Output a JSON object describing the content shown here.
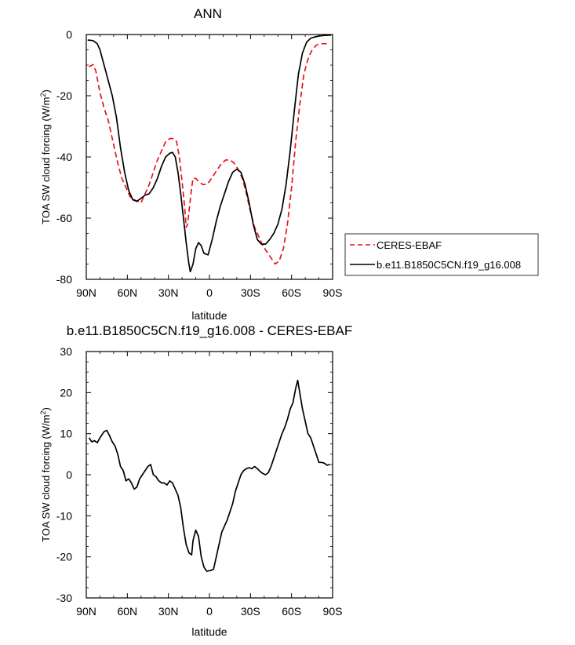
{
  "chart_data": [
    {
      "type": "line",
      "title": "ANN",
      "xlabel": "latitude",
      "ylabel": "TOA SW cloud forcing (W/m²)",
      "ylabel_main": "TOA SW cloud forcing (W/m",
      "ylabel_sup": "2",
      "ylabel_close": ")",
      "xlim": [
        90,
        -90
      ],
      "ylim": [
        -80,
        0
      ],
      "x_ticks": [
        90,
        60,
        30,
        0,
        -30,
        -60,
        -90
      ],
      "x_tick_labels": [
        "90N",
        "60N",
        "30N",
        "0",
        "30S",
        "60S",
        "90S"
      ],
      "y_ticks": [
        0,
        -20,
        -40,
        -60,
        -80
      ],
      "y_tick_labels": [
        "0",
        "-20",
        "-40",
        "-60",
        "-80"
      ],
      "legend": "right, outside",
      "series": [
        {
          "name": "CERES-EBAF",
          "color": "#e8151b",
          "dashed": true,
          "points": [
            [
              88,
              -10.5
            ],
            [
              85,
              -9.8
            ],
            [
              83,
              -12
            ],
            [
              80,
              -19
            ],
            [
              77,
              -24
            ],
            [
              74,
              -28
            ],
            [
              70,
              -36
            ],
            [
              67,
              -42
            ],
            [
              64,
              -47
            ],
            [
              61,
              -50
            ],
            [
              58,
              -53
            ],
            [
              55,
              -54
            ],
            [
              50,
              -55
            ],
            [
              47,
              -52
            ],
            [
              44,
              -49
            ],
            [
              41,
              -45
            ],
            [
              38,
              -41
            ],
            [
              35,
              -38
            ],
            [
              32,
              -35
            ],
            [
              29,
              -34
            ],
            [
              26,
              -34
            ],
            [
              24,
              -35
            ],
            [
              22,
              -40
            ],
            [
              20,
              -48
            ],
            [
              18,
              -57
            ],
            [
              17,
              -63
            ],
            [
              16,
              -62
            ],
            [
              15,
              -58
            ],
            [
              13,
              -50
            ],
            [
              12,
              -47
            ],
            [
              10,
              -47
            ],
            [
              8,
              -48
            ],
            [
              5,
              -49
            ],
            [
              2,
              -49
            ],
            [
              0,
              -48
            ],
            [
              -3,
              -46
            ],
            [
              -6,
              -44
            ],
            [
              -9,
              -42
            ],
            [
              -12,
              -41
            ],
            [
              -15,
              -41
            ],
            [
              -18,
              -42
            ],
            [
              -21,
              -44
            ],
            [
              -24,
              -47
            ],
            [
              -27,
              -52
            ],
            [
              -30,
              -58
            ],
            [
              -33,
              -63
            ],
            [
              -36,
              -66
            ],
            [
              -39,
              -69
            ],
            [
              -42,
              -71
            ],
            [
              -45,
              -73
            ],
            [
              -48,
              -75
            ],
            [
              -51,
              -74
            ],
            [
              -54,
              -70
            ],
            [
              -57,
              -62
            ],
            [
              -60,
              -50
            ],
            [
              -63,
              -35
            ],
            [
              -66,
              -23
            ],
            [
              -69,
              -13
            ],
            [
              -72,
              -8
            ],
            [
              -75,
              -5
            ],
            [
              -78,
              -3.5
            ],
            [
              -81,
              -3
            ],
            [
              -85,
              -3
            ],
            [
              -88,
              -3
            ]
          ]
        },
        {
          "name": "b.e11.B1850C5CN.f19_g16.008",
          "color": "#000000",
          "dashed": false,
          "points": [
            [
              89,
              -1.8
            ],
            [
              85,
              -2
            ],
            [
              82,
              -3
            ],
            [
              80,
              -5
            ],
            [
              77,
              -10
            ],
            [
              74,
              -15
            ],
            [
              71,
              -20
            ],
            [
              68,
              -27
            ],
            [
              65,
              -37
            ],
            [
              62,
              -45
            ],
            [
              59,
              -51
            ],
            [
              56,
              -54
            ],
            [
              53,
              -54.5
            ],
            [
              50,
              -53.5
            ],
            [
              47,
              -52.5
            ],
            [
              44,
              -52
            ],
            [
              41,
              -50
            ],
            [
              38,
              -47
            ],
            [
              35,
              -43
            ],
            [
              32,
              -40
            ],
            [
              29,
              -38.8
            ],
            [
              27,
              -38.5
            ],
            [
              25,
              -40
            ],
            [
              23,
              -45
            ],
            [
              21,
              -52
            ],
            [
              19,
              -60
            ],
            [
              17,
              -68
            ],
            [
              15,
              -75
            ],
            [
              14,
              -77.5
            ],
            [
              12,
              -75
            ],
            [
              10,
              -70
            ],
            [
              8,
              -68
            ],
            [
              6,
              -69
            ],
            [
              4,
              -71.5
            ],
            [
              1,
              -72
            ],
            [
              -2,
              -67
            ],
            [
              -5,
              -61
            ],
            [
              -8,
              -56
            ],
            [
              -11,
              -52
            ],
            [
              -14,
              -48
            ],
            [
              -17,
              -45
            ],
            [
              -20,
              -44
            ],
            [
              -23,
              -45
            ],
            [
              -26,
              -49
            ],
            [
              -29,
              -55
            ],
            [
              -32,
              -62
            ],
            [
              -35,
              -67
            ],
            [
              -38,
              -68.5
            ],
            [
              -41,
              -68.5
            ],
            [
              -44,
              -67
            ],
            [
              -47,
              -65
            ],
            [
              -50,
              -62
            ],
            [
              -53,
              -57
            ],
            [
              -56,
              -49
            ],
            [
              -59,
              -38
            ],
            [
              -62,
              -25
            ],
            [
              -65,
              -13
            ],
            [
              -68,
              -6
            ],
            [
              -71,
              -2.5
            ],
            [
              -74,
              -1.2
            ],
            [
              -77,
              -0.8
            ],
            [
              -80,
              -0.5
            ],
            [
              -84,
              -0.3
            ],
            [
              -89,
              -0.2
            ]
          ]
        }
      ]
    },
    {
      "type": "line",
      "title": "b.e11.B1850C5CN.f19_g16.008 - CERES-EBAF",
      "xlabel": "latitude",
      "ylabel": "TOA SW cloud forcing (W/m²)",
      "ylabel_main": "TOA SW cloud forcing (W/m",
      "ylabel_sup": "2",
      "ylabel_close": ")",
      "xlim": [
        90,
        -90
      ],
      "ylim": [
        -30,
        30
      ],
      "x_ticks": [
        90,
        60,
        30,
        0,
        -30,
        -60,
        -90
      ],
      "x_tick_labels": [
        "90N",
        "60N",
        "30N",
        "0",
        "30S",
        "60S",
        "90S"
      ],
      "y_ticks": [
        30,
        20,
        10,
        0,
        -10,
        -20,
        -30
      ],
      "y_tick_labels": [
        "30",
        "20",
        "10",
        "0",
        "-10",
        "-20",
        "-30"
      ],
      "series": [
        {
          "color": "#000000",
          "dashed": false,
          "points": [
            [
              88,
              9
            ],
            [
              86,
              8
            ],
            [
              84,
              8.3
            ],
            [
              82,
              7.8
            ],
            [
              80,
              9
            ],
            [
              77,
              10.5
            ],
            [
              75,
              10.8
            ],
            [
              73,
              9.5
            ],
            [
              71,
              8
            ],
            [
              69,
              7
            ],
            [
              67,
              5
            ],
            [
              65,
              2
            ],
            [
              63,
              1
            ],
            [
              61,
              -1.5
            ],
            [
              59,
              -1
            ],
            [
              57,
              -2
            ],
            [
              55,
              -3.5
            ],
            [
              53,
              -3
            ],
            [
              51,
              -1
            ],
            [
              49,
              0
            ],
            [
              47,
              1
            ],
            [
              45,
              2
            ],
            [
              43,
              2.5
            ],
            [
              41,
              0
            ],
            [
              39,
              -0.5
            ],
            [
              37,
              -1.5
            ],
            [
              35,
              -2
            ],
            [
              33,
              -2
            ],
            [
              31,
              -2.5
            ],
            [
              29,
              -1.5
            ],
            [
              27,
              -2
            ],
            [
              25,
              -3.5
            ],
            [
              23,
              -5
            ],
            [
              21,
              -8
            ],
            [
              19,
              -13
            ],
            [
              17,
              -17
            ],
            [
              15,
              -19
            ],
            [
              13,
              -19.5
            ],
            [
              12,
              -16
            ],
            [
              10,
              -13.5
            ],
            [
              8,
              -15
            ],
            [
              6,
              -20
            ],
            [
              4,
              -22.5
            ],
            [
              2,
              -23.5
            ],
            [
              -1,
              -23.3
            ],
            [
              -3,
              -23
            ],
            [
              -5,
              -20
            ],
            [
              -7,
              -17
            ],
            [
              -9,
              -14
            ],
            [
              -11,
              -12.5
            ],
            [
              -13,
              -11
            ],
            [
              -15,
              -9
            ],
            [
              -17,
              -7
            ],
            [
              -19,
              -4
            ],
            [
              -21,
              -2
            ],
            [
              -23,
              0
            ],
            [
              -25,
              1
            ],
            [
              -27,
              1.5
            ],
            [
              -29,
              1.7
            ],
            [
              -31,
              1.5
            ],
            [
              -33,
              2
            ],
            [
              -35,
              1.5
            ],
            [
              -37,
              0.8
            ],
            [
              -39,
              0.3
            ],
            [
              -41,
              0
            ],
            [
              -43,
              0.5
            ],
            [
              -45,
              2
            ],
            [
              -47,
              4
            ],
            [
              -49,
              6
            ],
            [
              -51,
              8
            ],
            [
              -53,
              10
            ],
            [
              -55,
              11.5
            ],
            [
              -57,
              13.5
            ],
            [
              -59,
              16
            ],
            [
              -61,
              17.5
            ],
            [
              -63,
              21
            ],
            [
              -64.5,
              23
            ],
            [
              -66,
              20
            ],
            [
              -68,
              16
            ],
            [
              -70,
              13
            ],
            [
              -72,
              10
            ],
            [
              -74,
              9
            ],
            [
              -76,
              7
            ],
            [
              -78,
              5
            ],
            [
              -80,
              3
            ],
            [
              -82,
              3
            ],
            [
              -84,
              2.8
            ],
            [
              -86,
              2.3
            ],
            [
              -88,
              2.5
            ]
          ]
        }
      ]
    }
  ],
  "colors": {
    "axes": "#000000",
    "obs": "#e8151b",
    "model": "#000000"
  }
}
